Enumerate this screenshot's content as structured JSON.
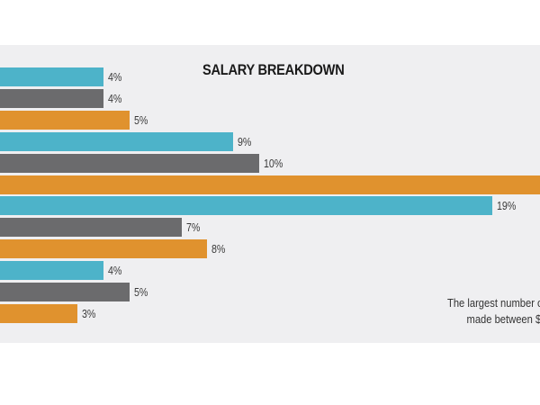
{
  "chart_data": {
    "type": "bar",
    "orientation": "horizontal",
    "title": "SALARY BREAKDOWN",
    "bars": [
      {
        "label": "4%",
        "value": 4,
        "color_key": "blue"
      },
      {
        "label": "4%",
        "value": 4,
        "color_key": "gray"
      },
      {
        "label": "5%",
        "value": 5,
        "color_key": "orange"
      },
      {
        "label": "9%",
        "value": 9,
        "color_key": "blue"
      },
      {
        "label": "10%",
        "value": 10,
        "color_key": "gray"
      },
      {
        "label": "",
        "value": 21,
        "color_key": "orange"
      },
      {
        "label": "19%",
        "value": 19,
        "color_key": "blue"
      },
      {
        "label": "7%",
        "value": 7,
        "color_key": "gray"
      },
      {
        "label": "8%",
        "value": 8,
        "color_key": "orange"
      },
      {
        "label": "4%",
        "value": 4,
        "color_key": "blue"
      },
      {
        "label": "5%",
        "value": 5,
        "color_key": "gray"
      },
      {
        "label": "3%",
        "value": 3,
        "color_key": "orange"
      }
    ],
    "colors": {
      "blue": "#4db3c9",
      "gray": "#6b6b6d",
      "orange": "#e0922e"
    },
    "grid": false
  },
  "note": {
    "line1": "The largest number o",
    "line2": "made between $"
  }
}
